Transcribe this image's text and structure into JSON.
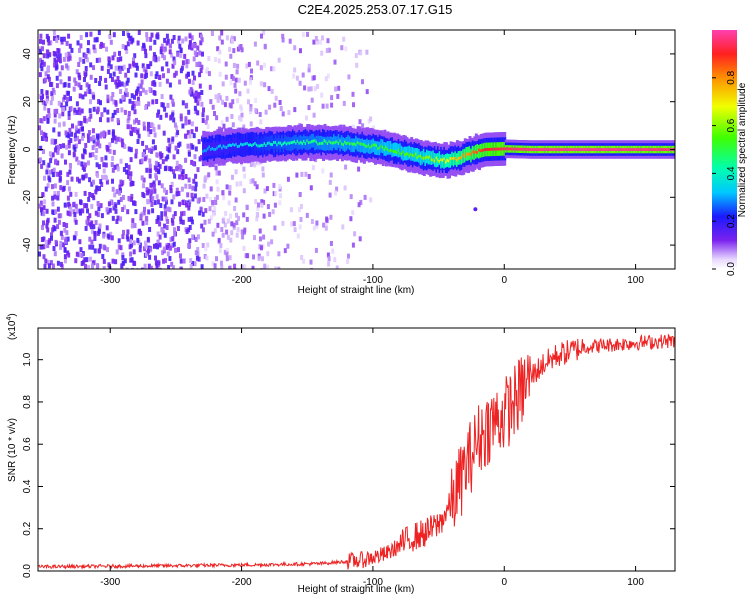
{
  "title": "C2E4.2025.253.07.17.G15",
  "colors": {
    "snr_line": "#ee2222",
    "background": "#ffffff",
    "frame": "#000000",
    "noise": "#7a22ee"
  },
  "chart_data": [
    {
      "type": "heatmap",
      "name": "spectrogram",
      "xlabel": "Height of straight line (km)",
      "ylabel": "Frequency (Hz)",
      "xlim": [
        -355,
        130
      ],
      "ylim": [
        -50,
        50
      ],
      "x_ticks": [
        -300,
        -200,
        -100,
        0,
        100
      ],
      "y_ticks": [
        -40,
        -20,
        0,
        20,
        40
      ],
      "ridge": [
        {
          "x": -230,
          "y": 0,
          "a": 0.3
        },
        {
          "x": -210,
          "y": 1.5,
          "a": 0.32
        },
        {
          "x": -190,
          "y": 2,
          "a": 0.38
        },
        {
          "x": -170,
          "y": 2.5,
          "a": 0.42
        },
        {
          "x": -150,
          "y": 3,
          "a": 0.45
        },
        {
          "x": -130,
          "y": 3,
          "a": 0.48
        },
        {
          "x": -110,
          "y": 2,
          "a": 0.5
        },
        {
          "x": -95,
          "y": 1,
          "a": 0.52
        },
        {
          "x": -80,
          "y": -1,
          "a": 0.55
        },
        {
          "x": -65,
          "y": -3,
          "a": 0.58
        },
        {
          "x": -55,
          "y": -4,
          "a": 0.62
        },
        {
          "x": -45,
          "y": -4.5,
          "a": 0.68
        },
        {
          "x": -35,
          "y": -3.5,
          "a": 0.75
        },
        {
          "x": -25,
          "y": -1.5,
          "a": 0.82
        },
        {
          "x": -15,
          "y": 0,
          "a": 0.9
        },
        {
          "x": 0,
          "y": 0.3,
          "a": 0.94
        },
        {
          "x": 20,
          "y": 0,
          "a": 0.97
        },
        {
          "x": 60,
          "y": 0,
          "a": 0.98
        },
        {
          "x": 100,
          "y": 0,
          "a": 0.97
        },
        {
          "x": 130,
          "y": 0,
          "a": 0.96
        }
      ],
      "outlier": {
        "x": -22,
        "y": -25
      }
    },
    {
      "type": "colorbar",
      "label": "Normalized spectral amplitude",
      "range": [
        0.0,
        1.0
      ],
      "ticks": [
        "0.0",
        "0.2",
        "0.4",
        "0.6",
        "0.8"
      ],
      "tick_values": [
        0.0,
        0.2,
        0.4,
        0.6,
        0.8
      ]
    },
    {
      "type": "line",
      "name": "snr",
      "xlabel": "Height of straight line (km)",
      "ylabel": "SNR (10 * v/v)",
      "exponent": "(x10",
      "exponent_power": "4",
      "exponent_close": ")",
      "xlim": [
        -355,
        130
      ],
      "ylim": [
        0,
        1.15
      ],
      "x_ticks": [
        -300,
        -200,
        -100,
        0,
        100
      ],
      "y_ticks": [
        "0.0",
        "0.2",
        "0.4",
        "0.6",
        "0.8",
        "1.0"
      ],
      "y_tick_values": [
        0.0,
        0.2,
        0.4,
        0.6,
        0.8,
        1.0
      ],
      "trend_x": [
        -355,
        -250,
        -180,
        -140,
        -110,
        -90,
        -80,
        -70,
        -60,
        -50,
        -40,
        -30,
        -20,
        -10,
        0,
        10,
        20,
        30,
        40,
        50,
        60,
        80,
        100,
        130
      ],
      "trend_y": [
        0.02,
        0.025,
        0.03,
        0.035,
        0.05,
        0.08,
        0.12,
        0.16,
        0.18,
        0.22,
        0.32,
        0.48,
        0.62,
        0.7,
        0.74,
        0.82,
        0.92,
        0.98,
        1.02,
        1.04,
        1.06,
        1.07,
        1.08,
        1.09
      ]
    }
  ]
}
